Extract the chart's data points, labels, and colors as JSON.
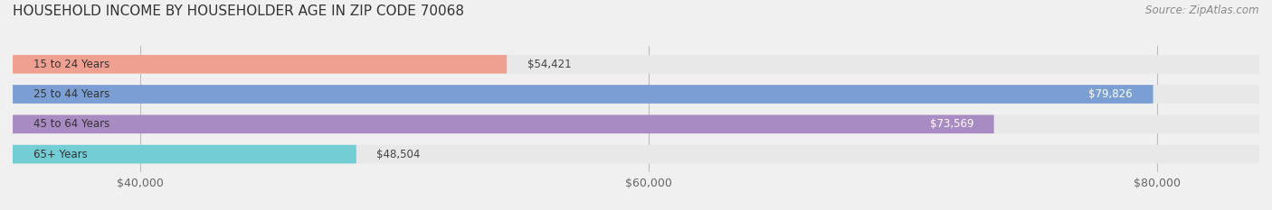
{
  "title": "HOUSEHOLD INCOME BY HOUSEHOLDER AGE IN ZIP CODE 70068",
  "source": "Source: ZipAtlas.com",
  "categories": [
    "15 to 24 Years",
    "25 to 44 Years",
    "45 to 64 Years",
    "65+ Years"
  ],
  "values": [
    54421,
    79826,
    73569,
    48504
  ],
  "bar_colors": [
    "#f0a090",
    "#7b9fd4",
    "#a98bc4",
    "#72cdd4"
  ],
  "label_colors": [
    "#333333",
    "#ffffff",
    "#ffffff",
    "#333333"
  ],
  "x_min": 35000,
  "x_max": 84000,
  "x_ticks": [
    40000,
    60000,
    80000
  ],
  "x_tick_labels": [
    "$40,000",
    "$60,000",
    "$80,000"
  ],
  "bg_color": "#f0f0f0",
  "bar_bg_color": "#e8e8e8",
  "title_fontsize": 11,
  "source_fontsize": 8.5,
  "tick_fontsize": 9,
  "label_fontsize": 8.5,
  "category_fontsize": 8.5
}
